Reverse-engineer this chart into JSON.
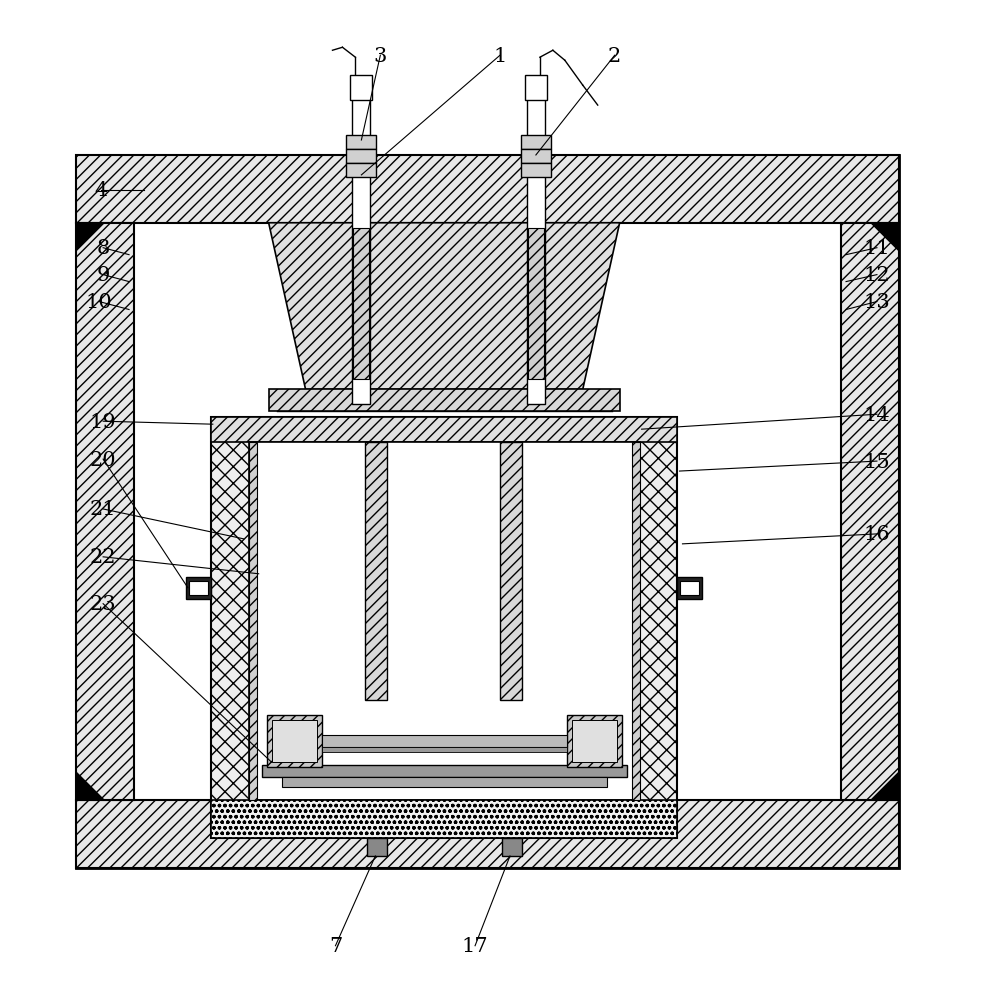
{
  "fig_width": 10.0,
  "fig_height": 9.87,
  "bg_color": "#ffffff"
}
